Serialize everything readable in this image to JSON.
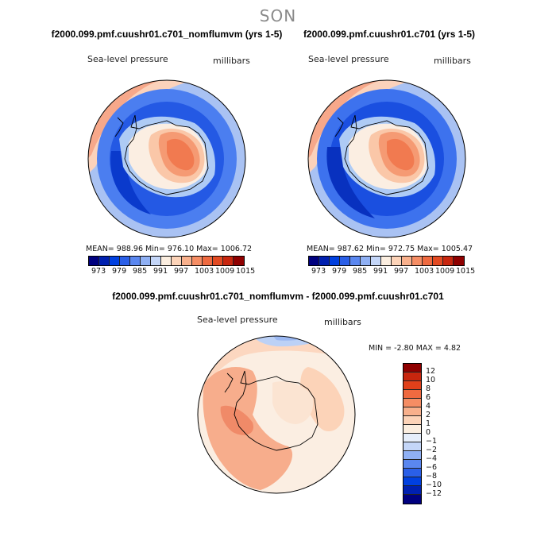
{
  "season": "SON",
  "panels": {
    "left": {
      "title": "f2000.099.pmf.cuushr01.c701_nomflumvm (yrs 1-5)",
      "field_label": "Sea-level pressure",
      "units_label": "millibars",
      "stats": "MEAN= 988.96   Min= 976.10   Max= 1006.72"
    },
    "right": {
      "title": "f2000.099.pmf.cuushr01.c701 (yrs 1-5)",
      "field_label": "Sea-level pressure",
      "units_label": "millibars",
      "stats": "MEAN= 987.62   Min= 972.75   Max= 1005.47"
    },
    "diff": {
      "title": "f2000.099.pmf.cuushr01.c701_nomflumvm - f2000.099.pmf.cuushr01.c701",
      "field_label": "Sea-level pressure",
      "units_label": "millibars",
      "stats": "MIN =   -2.80 MAX =    4.82"
    }
  },
  "colorbar_abs": {
    "colors": [
      "#00007f",
      "#0020b0",
      "#0040e0",
      "#2a5fe8",
      "#5a87f0",
      "#8fb0f4",
      "#c4d6f8",
      "#fbeee0",
      "#fcd3b8",
      "#f8b08c",
      "#f58d64",
      "#ef6a40",
      "#e24a22",
      "#c8260e",
      "#8f0000"
    ],
    "tick_labels": [
      "973",
      "979",
      "985",
      "991",
      "997",
      "1003",
      "1009",
      "1015"
    ]
  },
  "colorbar_diff": {
    "colors": [
      "#8f0000",
      "#c8260e",
      "#e0401a",
      "#ef6a40",
      "#f58d64",
      "#f8b08c",
      "#fcd3b8",
      "#fbeee0",
      "#e6eefb",
      "#c4d6f8",
      "#8fb0f4",
      "#5a87f0",
      "#2a5fe8",
      "#0040e0",
      "#0020b0",
      "#00007f"
    ],
    "tick_labels": [
      "12",
      "10",
      "8",
      "6",
      "4",
      "2",
      "1",
      "0",
      "−1",
      "−2",
      "−4",
      "−6",
      "−8",
      "−10",
      "−12"
    ]
  }
}
